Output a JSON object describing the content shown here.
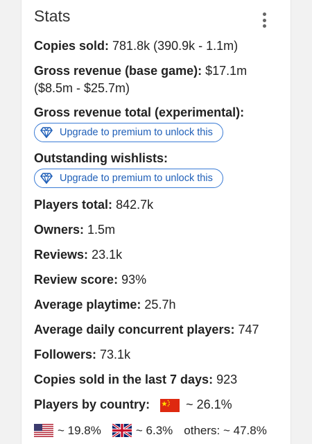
{
  "card": {
    "title": "Stats"
  },
  "stats": {
    "copies_sold": {
      "label": "Copies sold:",
      "value": "781.8k (390.9k - 1.1m)"
    },
    "gross_revenue_base": {
      "label": "Gross revenue (base game):",
      "value": "$17.1m",
      "range": "($8.5m - $25.7m)"
    },
    "gross_revenue_total": {
      "label": "Gross revenue total (experimental):",
      "cta": "Upgrade to premium to unlock this"
    },
    "outstanding_wishlists": {
      "label": "Outstanding wishlists:",
      "cta": "Upgrade to premium to unlock this"
    },
    "players_total": {
      "label": "Players total:",
      "value": "842.7k"
    },
    "owners": {
      "label": "Owners:",
      "value": "1.5m"
    },
    "reviews": {
      "label": "Reviews:",
      "value": "23.1k"
    },
    "review_score": {
      "label": "Review score:",
      "value": "93%"
    },
    "avg_playtime": {
      "label": "Average playtime:",
      "value": "25.7h"
    },
    "avg_concurrent": {
      "label": "Average daily concurrent players:",
      "value": "747"
    },
    "followers": {
      "label": "Followers:",
      "value": "73.1k"
    },
    "copies_last7": {
      "label": "Copies sold in the last 7 days:",
      "value": "923"
    },
    "players_by_country": {
      "label": "Players by country:",
      "countries": [
        {
          "flag": "china-flag-icon",
          "value": "~ 26.1%"
        },
        {
          "flag": "usa-flag-icon",
          "value": "~ 19.8%"
        },
        {
          "flag": "uk-flag-icon",
          "value": "~ 6.3%"
        }
      ],
      "others": "others: ~ 47.8%"
    }
  },
  "colors": {
    "accent": "#1f5fb8",
    "text": "#222222",
    "background": "#ffffff"
  }
}
